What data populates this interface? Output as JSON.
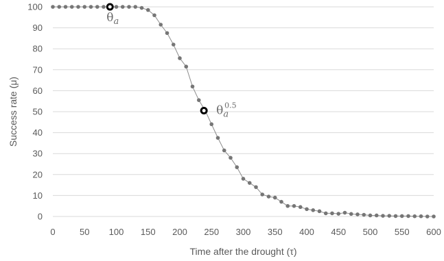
{
  "chart_data": {
    "type": "line",
    "xlabel": "Time after the drought (τ)",
    "ylabel": "Success rate (μ)",
    "xlim": [
      0,
      600
    ],
    "ylim": [
      0,
      100
    ],
    "xticks": [
      0,
      50,
      100,
      150,
      200,
      250,
      300,
      350,
      400,
      450,
      500,
      550,
      600
    ],
    "yticks": [
      0,
      10,
      20,
      30,
      40,
      50,
      60,
      70,
      80,
      90,
      100
    ],
    "grid": "horizontal",
    "colors": {
      "series": "#7f7f7f",
      "grid": "#d9d9d9",
      "highlight": "#000000"
    },
    "series": [
      {
        "x": [
          0,
          10,
          20,
          30,
          40,
          50,
          60,
          70,
          80,
          90,
          100,
          110,
          120,
          130,
          140,
          150,
          160,
          170,
          180,
          190,
          200,
          210,
          220,
          230,
          240,
          250,
          260,
          270,
          280,
          290,
          300,
          310,
          320,
          330,
          340,
          350,
          360,
          370,
          380,
          390,
          400,
          410,
          420,
          430,
          440,
          450,
          460,
          470,
          480,
          490,
          500,
          510,
          520,
          530,
          540,
          550,
          560,
          570,
          580,
          590,
          600
        ],
        "values": [
          100,
          100,
          100,
          100,
          100,
          100,
          100,
          100,
          100,
          100,
          100,
          100,
          100,
          100,
          99.5,
          98.5,
          96,
          91.5,
          87.5,
          82,
          75.5,
          71.5,
          62,
          55.5,
          50.5,
          44,
          37.5,
          31.5,
          28,
          23.5,
          18,
          16,
          14,
          10.5,
          9.5,
          9,
          7,
          5,
          5,
          4.5,
          3.5,
          3,
          2.5,
          1.5,
          1.5,
          1.3,
          1.8,
          1.2,
          1,
          0.8,
          0.5,
          0.5,
          0.3,
          0.3,
          0.2,
          0.2,
          0.2,
          0.1,
          0.1,
          0,
          0
        ]
      }
    ],
    "highlights": [
      {
        "x": 90,
        "y": 100,
        "label": "θa"
      },
      {
        "x": 238,
        "y": 50.5,
        "label": "θa0.5"
      }
    ]
  }
}
